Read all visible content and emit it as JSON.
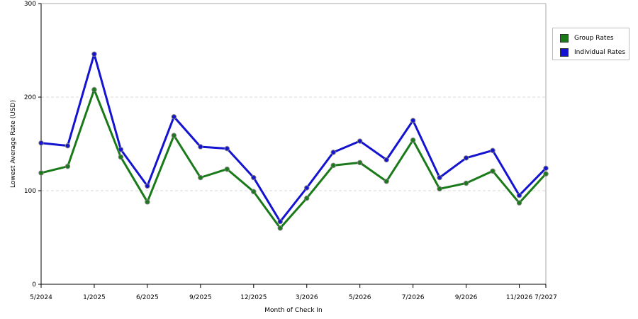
{
  "chart_data": {
    "type": "line",
    "title": "",
    "xlabel": "Month of Check In",
    "ylabel": "Lowest Average Rate (USD)",
    "ylim": [
      0,
      300
    ],
    "yticks": [
      0,
      100,
      200,
      300
    ],
    "grid": true,
    "legend_position": "right",
    "x_tick_labels": [
      "5/2024",
      "1/2025",
      "6/2025",
      "9/2025",
      "12/2025",
      "3/2026",
      "5/2026",
      "7/2026",
      "9/2026",
      "11/2026",
      "7/2027"
    ],
    "series": [
      {
        "name": "Group Rates",
        "color": "#1a7a1a",
        "values": [
          119,
          126,
          208,
          136,
          88,
          159,
          114,
          123,
          99,
          60,
          92,
          127,
          130,
          110,
          154,
          102,
          108,
          121,
          87,
          118
        ]
      },
      {
        "name": "Individual Rates",
        "color": "#1414d0",
        "values": [
          151,
          148,
          246,
          144,
          105,
          179,
          147,
          145,
          114,
          67,
          103,
          141,
          153,
          133,
          175,
          114,
          135,
          143,
          95,
          124
        ]
      }
    ]
  }
}
